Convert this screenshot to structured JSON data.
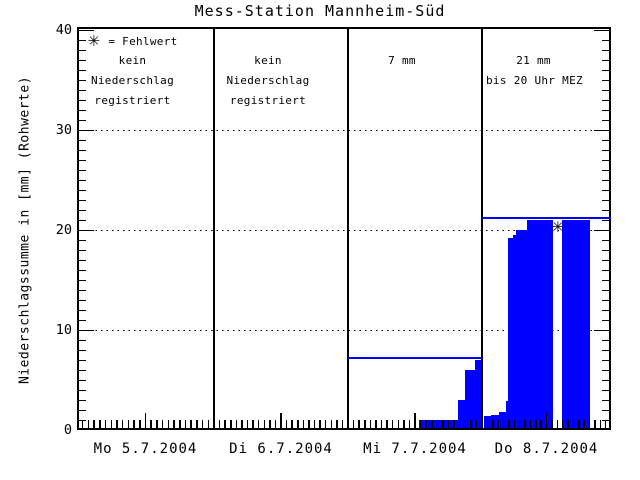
{
  "title": "Mess-Station Mannheim-Süd",
  "legend": {
    "symbol": "✳",
    "text": "= Fehlwert",
    "meaning": "Fehlwert = missing value marker"
  },
  "y_axis": {
    "label": "Niederschlagssumme in [mm] (Rohwerte)",
    "tick_labels": [
      "0",
      "10",
      "20",
      "30",
      "40"
    ],
    "minor_tick_step_mm": 1,
    "dotted_grid_mm": [
      10,
      20,
      30
    ],
    "ylim": [
      0,
      40
    ]
  },
  "x_axis": {
    "day_labels": [
      "Mo 5.7.2004",
      "Di 6.7.2004",
      "Mi 7.7.2004",
      "Do 8.7.2004"
    ],
    "hours_per_day": 24,
    "minor_tick": "hourly",
    "medium_tick": "noon"
  },
  "colors": {
    "bar": "#0000ff",
    "sum_line": "#0000ff",
    "axis": "#000000",
    "text": "#000000",
    "background": "#ffffff"
  },
  "chart_data": {
    "type": "bar",
    "title": "Mess-Station Mannheim-Süd",
    "ylabel": "Niederschlagssumme in [mm] (Rohwerte)",
    "ylim": [
      0,
      40
    ],
    "grid": "dotted horizontal lines at 10, 20, 30 mm",
    "series_semantics": "cumulative precipitation sum within each day (raw values), stepped bars; x0/x1 are fractions of the day width",
    "days": [
      {
        "label": "Mo 5.7.2004",
        "annotation": [
          "kein",
          "Niederschlag",
          "registriert"
        ],
        "has_legend": true,
        "daily_total_mm": 0,
        "sum_line_mm": null,
        "segments": []
      },
      {
        "label": "Di 6.7.2004",
        "annotation": [
          "kein",
          "Niederschlag",
          "registriert"
        ],
        "has_legend": false,
        "daily_total_mm": 0,
        "sum_line_mm": null,
        "segments": []
      },
      {
        "label": "Mi 7.7.2004",
        "annotation": [
          "7 mm"
        ],
        "has_legend": false,
        "daily_total_mm": 7,
        "sum_line_mm": 7.2,
        "segments": [
          {
            "x0": 0.53,
            "x1": 0.82,
            "mm": 1
          },
          {
            "x0": 0.82,
            "x1": 0.873,
            "mm": 3
          },
          {
            "x0": 0.873,
            "x1": 0.948,
            "mm": 6
          },
          {
            "x0": 0.948,
            "x1": 1.0,
            "mm": 7
          }
        ]
      },
      {
        "label": "Do 8.7.2004",
        "annotation": [
          "21 mm",
          "bis 20 Uhr MEZ"
        ],
        "has_legend": false,
        "daily_total_mm": 21,
        "sum_line_mm": 21.2,
        "segments": [
          {
            "x0": 0.016,
            "x1": 0.07,
            "mm": 1.4
          },
          {
            "x0": 0.07,
            "x1": 0.132,
            "mm": 1.5
          },
          {
            "x0": 0.132,
            "x1": 0.186,
            "mm": 1.8
          },
          {
            "x0": 0.186,
            "x1": 0.202,
            "mm": 2.9
          },
          {
            "x0": 0.202,
            "x1": 0.24,
            "mm": 19.2
          },
          {
            "x0": 0.24,
            "x1": 0.264,
            "mm": 19.5
          },
          {
            "x0": 0.264,
            "x1": 0.349,
            "mm": 20.0
          },
          {
            "x0": 0.349,
            "x1": 0.549,
            "mm": 21.0
          },
          {
            "x0": 0.62,
            "x1": 0.837,
            "mm": 21.0
          }
        ],
        "fehlwert_marker": {
          "x_frac": 0.588,
          "mm": 20.3
        }
      }
    ]
  }
}
